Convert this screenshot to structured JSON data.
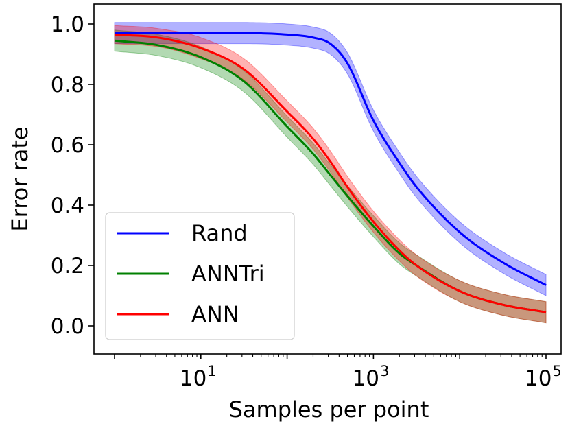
{
  "chart_data": {
    "type": "line",
    "xlabel": "Samples per point",
    "ylabel": "Error rate",
    "xscale": "log",
    "xlim": [
      1,
      100000
    ],
    "ylim": [
      -0.1,
      1.08
    ],
    "x_ticks": [
      {
        "value": 10,
        "base": "10",
        "exp": "1"
      },
      {
        "value": 1000,
        "base": "10",
        "exp": "3"
      },
      {
        "value": 100000,
        "base": "10",
        "exp": "5"
      }
    ],
    "y_ticks": [
      {
        "value": 0.0,
        "label": "0.0"
      },
      {
        "value": 0.2,
        "label": "0.2"
      },
      {
        "value": 0.4,
        "label": "0.4"
      },
      {
        "value": 0.6,
        "label": "0.6"
      },
      {
        "value": 0.8,
        "label": "0.8"
      },
      {
        "value": 1.0,
        "label": "1.0"
      }
    ],
    "grid": false,
    "legend_position": "lower-left",
    "series": [
      {
        "name": "Rand",
        "color": "#0000ff",
        "x": [
          1,
          10,
          31.6,
          100,
          200,
          316,
          500,
          1000,
          2000,
          3160,
          10000,
          31600,
          100000
        ],
        "y": [
          0.97,
          0.97,
          0.97,
          0.965,
          0.955,
          0.935,
          0.87,
          0.68,
          0.54,
          0.46,
          0.31,
          0.21,
          0.135
        ],
        "band": [
          0.035,
          0.035,
          0.035,
          0.035,
          0.035,
          0.035,
          0.035,
          0.035,
          0.035,
          0.035,
          0.035,
          0.035,
          0.035
        ]
      },
      {
        "name": "ANNTri",
        "color": "#008000",
        "x": [
          1,
          3.16,
          10,
          31.6,
          100,
          200,
          316,
          500,
          1000,
          2000,
          3160,
          10000,
          31600,
          100000
        ],
        "y": [
          0.945,
          0.93,
          0.89,
          0.81,
          0.66,
          0.57,
          0.5,
          0.43,
          0.33,
          0.24,
          0.2,
          0.115,
          0.07,
          0.045
        ],
        "band": [
          0.035,
          0.035,
          0.035,
          0.035,
          0.035,
          0.035,
          0.035,
          0.035,
          0.035,
          0.035,
          0.035,
          0.035,
          0.035,
          0.035
        ]
      },
      {
        "name": "ANN",
        "color": "#ff0000",
        "x": [
          1,
          3.16,
          10,
          31.6,
          100,
          200,
          316,
          500,
          1000,
          2000,
          3160,
          10000,
          31600,
          100000
        ],
        "y": [
          0.965,
          0.955,
          0.92,
          0.85,
          0.71,
          0.62,
          0.545,
          0.46,
          0.345,
          0.25,
          0.2,
          0.115,
          0.07,
          0.045
        ],
        "band": [
          0.03,
          0.03,
          0.035,
          0.035,
          0.035,
          0.035,
          0.035,
          0.035,
          0.035,
          0.035,
          0.035,
          0.035,
          0.035,
          0.035
        ]
      }
    ]
  }
}
